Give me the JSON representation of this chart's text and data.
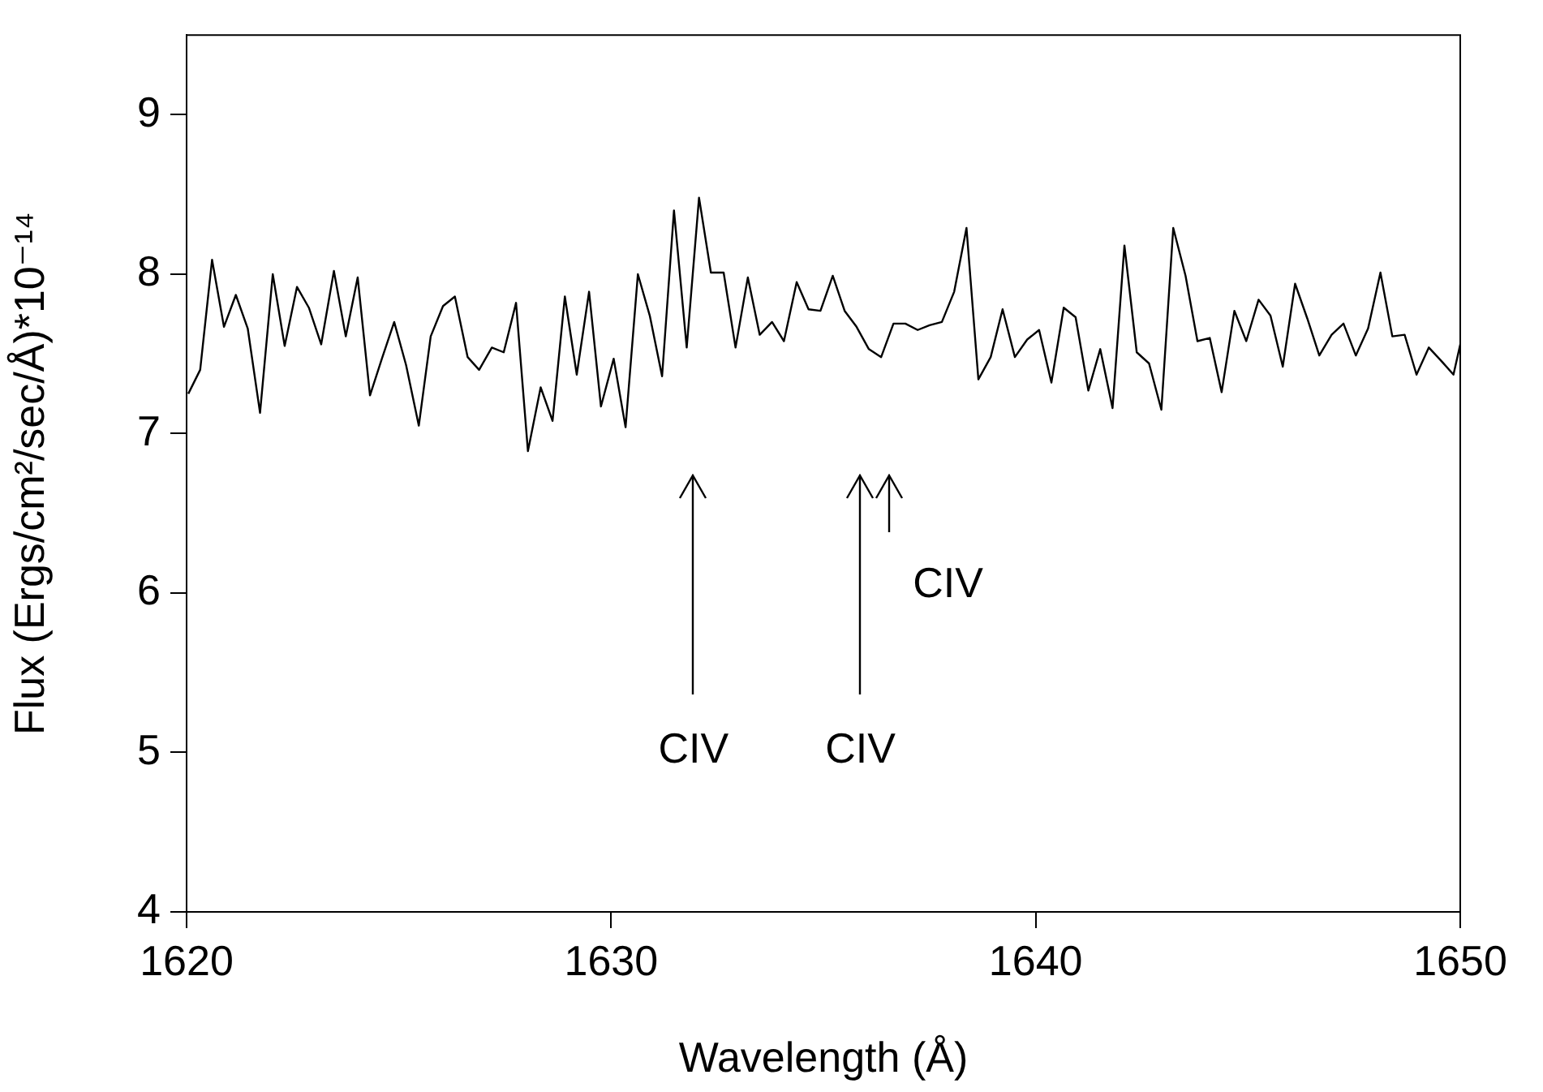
{
  "chart_data": {
    "type": "line",
    "xlabel": "Wavelength (Å)",
    "ylabel": "Flux (Ergs/cm²/sec/Å)*10⁻¹⁴",
    "x": [
      1620.04,
      1620.32,
      1620.6,
      1620.88,
      1621.16,
      1621.44,
      1621.73,
      1622.03,
      1622.31,
      1622.6,
      1622.88,
      1623.17,
      1623.47,
      1623.75,
      1624.03,
      1624.32,
      1624.6,
      1624.89,
      1625.17,
      1625.47,
      1625.75,
      1626.04,
      1626.32,
      1626.62,
      1626.89,
      1627.19,
      1627.47,
      1627.76,
      1628.04,
      1628.34,
      1628.62,
      1628.91,
      1629.19,
      1629.48,
      1629.76,
      1630.06,
      1630.34,
      1630.63,
      1630.91,
      1631.2,
      1631.48,
      1631.78,
      1632.07,
      1632.35,
      1632.65,
      1632.93,
      1633.22,
      1633.5,
      1633.79,
      1634.07,
      1634.37,
      1634.65,
      1634.93,
      1635.22,
      1635.5,
      1635.78,
      1636.07,
      1636.36,
      1636.65,
      1636.93,
      1637.22,
      1637.5,
      1637.79,
      1638.08,
      1638.37,
      1638.65,
      1638.94,
      1639.22,
      1639.51,
      1639.8,
      1640.08,
      1640.37,
      1640.66,
      1640.94,
      1641.24,
      1641.52,
      1641.81,
      1642.09,
      1642.38,
      1642.67,
      1642.96,
      1643.24,
      1643.53,
      1643.81,
      1644.1,
      1644.38,
      1644.68,
      1644.96,
      1645.25,
      1645.53,
      1645.82,
      1646.11,
      1646.4,
      1646.68,
      1646.97,
      1647.25,
      1647.54,
      1647.83,
      1648.12,
      1648.4,
      1648.69,
      1648.97,
      1649.26,
      1649.54,
      1649.84,
      1650.0
    ],
    "series": [
      {
        "color": "#000000",
        "values": [
          7.25,
          7.4,
          8.09,
          7.67,
          7.87,
          7.66,
          7.13,
          8.0,
          7.55,
          7.92,
          7.79,
          7.56,
          8.02,
          7.61,
          7.98,
          7.24,
          7.47,
          7.7,
          7.43,
          7.05,
          7.61,
          7.8,
          7.86,
          7.48,
          7.4,
          7.54,
          7.51,
          7.82,
          6.89,
          7.29,
          7.08,
          7.86,
          7.37,
          7.89,
          7.17,
          7.47,
          7.04,
          8.0,
          7.74,
          7.36,
          8.4,
          7.54,
          8.48,
          8.01,
          8.01,
          7.54,
          7.98,
          7.62,
          7.7,
          7.58,
          7.95,
          7.78,
          7.77,
          7.99,
          7.77,
          7.67,
          7.53,
          7.48,
          7.69,
          7.69,
          7.65,
          7.68,
          7.7,
          7.89,
          8.29,
          7.34,
          7.48,
          7.78,
          7.48,
          7.59,
          7.65,
          7.32,
          7.79,
          7.73,
          7.27,
          7.53,
          7.16,
          8.18,
          7.51,
          7.44,
          7.15,
          8.29,
          7.99,
          7.58,
          7.6,
          7.26,
          7.77,
          7.58,
          7.84,
          7.74,
          7.42,
          7.94,
          7.72,
          7.49,
          7.62,
          7.69,
          7.49,
          7.66,
          8.01,
          7.61,
          7.62,
          7.37,
          7.54,
          7.46,
          7.37,
          7.56
        ]
      }
    ],
    "xlim": [
      1620,
      1650
    ],
    "xticks": [
      1620,
      1630,
      1640,
      1650
    ],
    "ylim": [
      4,
      9.5
    ],
    "yticks": [
      4,
      5,
      6,
      7,
      8,
      9
    ],
    "annotations": [
      "CIV",
      "CIV",
      "CIV"
    ],
    "grid": false,
    "legend": false,
    "marker": "none",
    "line_style": "solid"
  }
}
